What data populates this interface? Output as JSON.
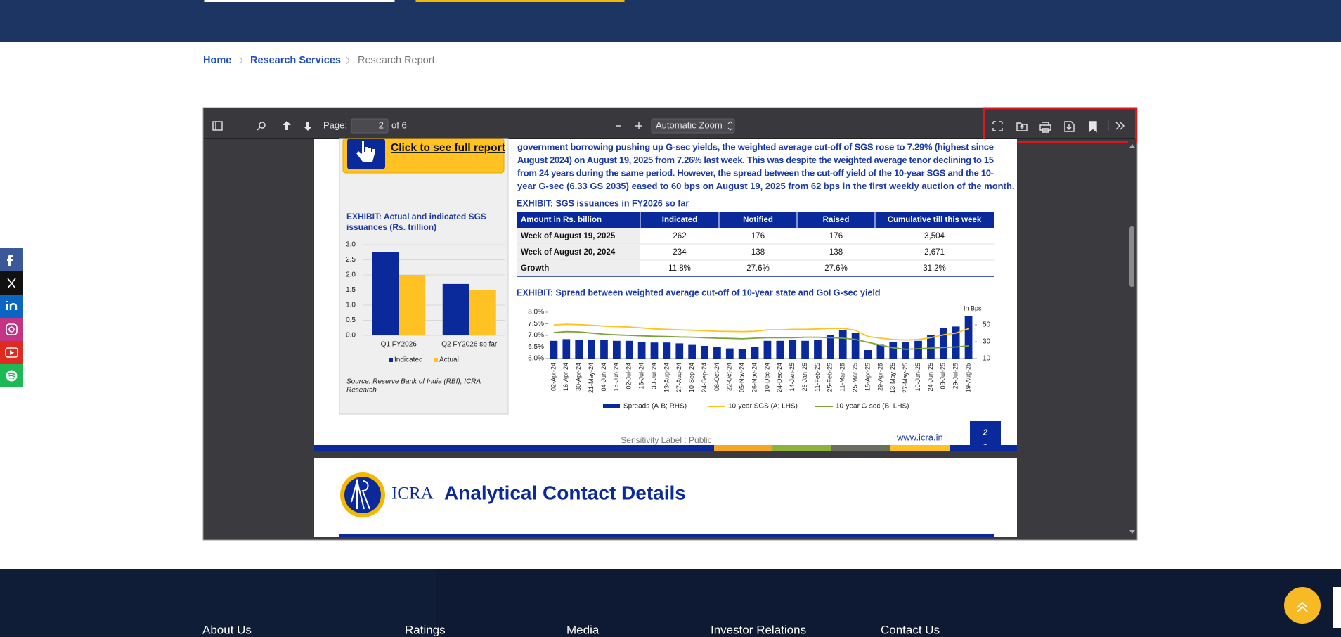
{
  "breadcrumb": [
    "Home",
    "Research Services",
    "Research Report"
  ],
  "viewer": {
    "page_label": "Page:",
    "page_number": "2",
    "page_count": "of 6",
    "zoom": "Automatic Zoom"
  },
  "document": {
    "button": "Click to see full report",
    "paragraph": [
      "government borrowing pushing up G-sec yields, the weighted average cut-off of SGS rose to 7.29% (highest since",
      "August 2024) on August 19, 2025 from 7.26% last week. This was despite the weighted average tenor declining to 15",
      "from 24 years during the same period. However, the spread between the cut-off yield of the 10-year SGS and the 10-",
      "year G-sec (6.33 GS 2035) eased to 60 bps on August 19, 2025 from 62 bps in the first weekly auction of the month."
    ],
    "bar_exhibit": {
      "type": "bar",
      "title_lines": [
        "EXHIBIT: Actual and indicated SGS",
        "issuances (Rs. trillion)"
      ],
      "categories": [
        "Q1 FY2026",
        "Q2 FY2026 so far"
      ],
      "series": [
        {
          "name": "Indicated",
          "color": "#0a2a9c",
          "values": [
            2.75,
            1.7
          ]
        },
        {
          "name": "Actual",
          "color": "#ffc222",
          "values": [
            2.0,
            1.5
          ]
        }
      ],
      "ylim": [
        0,
        3
      ],
      "yticks": [
        {
          "value": 0,
          "label": "0.0"
        },
        {
          "value": 0.5,
          "label": "0.5"
        },
        {
          "value": 1,
          "label": "1.0"
        },
        {
          "value": 1.5,
          "label": "1.5"
        },
        {
          "value": 2,
          "label": "2.0"
        },
        {
          "value": 2.5,
          "label": "2.5"
        },
        {
          "value": 3,
          "label": "3.0"
        }
      ],
      "grid": true,
      "source_lines": [
        "Source: Reserve Bank of India (RBI); ICRA",
        "Research"
      ]
    },
    "table_exhibit": {
      "title": "EXHIBIT: SGS issuances in FY2026 so far",
      "header": [
        "Amount in Rs. billion",
        "Indicated",
        "Notified",
        "Raised",
        "Cumulative till this week"
      ],
      "rows": [
        [
          "Week of August 19, 2025",
          "262",
          "176",
          "176",
          "3,504"
        ],
        [
          "Week of August 20, 2024",
          "234",
          "138",
          "138",
          "2,671"
        ],
        [
          "Growth",
          "11.8%",
          "27.6%",
          "27.6%",
          "31.2%"
        ]
      ]
    },
    "spread_exhibit": {
      "type": "bar-line",
      "title": "EXHIBIT: Spread between weighted average cut-off of 10-year state and GoI G-sec yield",
      "unit_label": "In Bps",
      "categories": [
        "02-Apr-24",
        "16-Apr-24",
        "30-Apr-24",
        "21-May-24",
        "04-Jun-24",
        "18-Jun-24",
        "02-Jul-24",
        "16-Jul-24",
        "30-Jul-24",
        "13-Aug-24",
        "27-Aug-24",
        "10-Sep-24",
        "24-Sep-24",
        "08-Oct-24",
        "22-Oct-24",
        "05-Nov-24",
        "26-Nov-24",
        "10-Dec-24",
        "24-Dec-24",
        "14-Jan-25",
        "28-Jan-25",
        "11-Feb-25",
        "25-Feb-25",
        "11-Mar-25",
        "25-Mar-25",
        "15-Apr-25",
        "29-Apr-25",
        "13-May-25",
        "27-May-25",
        "10-Jun-25",
        "24-Jun-25",
        "08-Jul-25",
        "29-Jul-25",
        "19-Aug-25"
      ],
      "series": [
        {
          "name": "Spreads (A-B; RHS)",
          "color": "#0a2a9c",
          "axis": "y2",
          "values": [
            31,
            33,
            32,
            32,
            32,
            31,
            31,
            30,
            29,
            29,
            28,
            27,
            25,
            24,
            22,
            21,
            24,
            31,
            31,
            32,
            31,
            32,
            38,
            44,
            40,
            20,
            27,
            30,
            30,
            31,
            38,
            46,
            48,
            60
          ]
        },
        {
          "name": "10-year SGS (A; LHS)",
          "color": "#ffc222",
          "values": [
            7.45,
            7.48,
            7.46,
            7.44,
            7.4,
            7.38,
            7.36,
            7.32,
            7.28,
            7.26,
            7.24,
            7.22,
            7.2,
            7.18,
            7.17,
            7.16,
            7.18,
            7.24,
            7.24,
            7.26,
            7.26,
            7.28,
            7.3,
            7.3,
            7.22,
            6.95,
            6.88,
            6.82,
            6.8,
            6.82,
            6.9,
            7.02,
            7.1,
            7.29
          ]
        },
        {
          "name": "10-year G-sec (B; LHS)",
          "color": "#7aa33a",
          "values": [
            7.12,
            7.16,
            7.15,
            7.1,
            7.05,
            7.02,
            7.0,
            6.98,
            6.96,
            6.95,
            6.93,
            6.92,
            6.9,
            6.88,
            6.87,
            6.85,
            6.88,
            6.9,
            6.9,
            6.9,
            6.92,
            6.92,
            6.9,
            6.88,
            6.82,
            6.7,
            6.58,
            6.46,
            6.4,
            6.42,
            6.45,
            6.48,
            6.5,
            6.55
          ]
        }
      ],
      "ylim": [
        6,
        8
      ],
      "yticks": [
        {
          "value": 6,
          "label": "6.0%"
        },
        {
          "value": 6.5,
          "label": "6.5%"
        },
        {
          "value": 7,
          "label": "7.0%"
        },
        {
          "value": 7.5,
          "label": "7.5%"
        },
        {
          "value": 8,
          "label": "8.0%"
        }
      ],
      "y2lim": [
        10,
        65
      ],
      "y2ticks": [
        10,
        30,
        50
      ]
    },
    "sensitivity": "Sensitivity Label : Public",
    "website": "www.icra.in",
    "page_number": "2",
    "next_page": {
      "logo_text": "ICRA",
      "title": "Analytical Contact Details"
    }
  },
  "footer": {
    "links": [
      "About Us",
      "Ratings",
      "Media",
      "Investor Relations",
      "Contact Us"
    ]
  }
}
